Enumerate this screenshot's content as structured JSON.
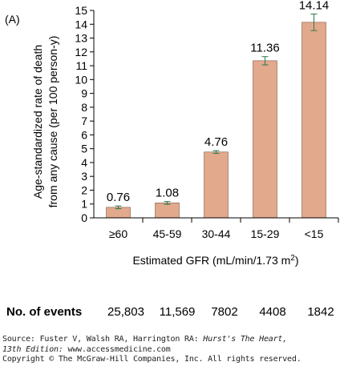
{
  "panel_label": "(A)",
  "chart_data": {
    "type": "bar",
    "categories": [
      "≥60",
      "45-59",
      "30-44",
      "15-29",
      "<15"
    ],
    "values": [
      0.76,
      1.08,
      4.76,
      11.36,
      14.14
    ],
    "value_labels": [
      "0.76",
      "1.08",
      "4.76",
      "11.36",
      "14.14"
    ],
    "error_bars": [
      [
        0.66,
        0.86
      ],
      [
        0.98,
        1.18
      ],
      [
        4.66,
        4.86
      ],
      [
        11.06,
        11.66
      ],
      [
        13.54,
        14.74
      ]
    ],
    "ylabel_line1": "Age-standardized rate of death",
    "ylabel_line2": "from any cause (per 100 person-y)",
    "xlabel": "Estimated GFR (mL/min/1.73 m",
    "xlabel_sup": "2",
    "xlabel_end": ")",
    "ylim": [
      0,
      15
    ],
    "yticks": [
      0,
      1,
      2,
      3,
      4,
      5,
      6,
      7,
      8,
      9,
      10,
      11,
      12,
      13,
      14,
      15
    ],
    "bar_color": "#e2a98c",
    "bar_edge_color": "#7a5a48",
    "error_color": "#2a7a4a"
  },
  "events": {
    "title": "No. of events",
    "values": [
      "25,803",
      "11,569",
      "7802",
      "4408",
      "1842"
    ]
  },
  "source": {
    "prefix": "Source: Fuster V, Walsh RA, Harrington RA: ",
    "book": "Hurst's The Heart,",
    "edition": "13th Edition:",
    "site": " www.accessmedicine.com",
    "copyright": "Copyright © The McGraw-Hill Companies, Inc. All rights reserved."
  }
}
